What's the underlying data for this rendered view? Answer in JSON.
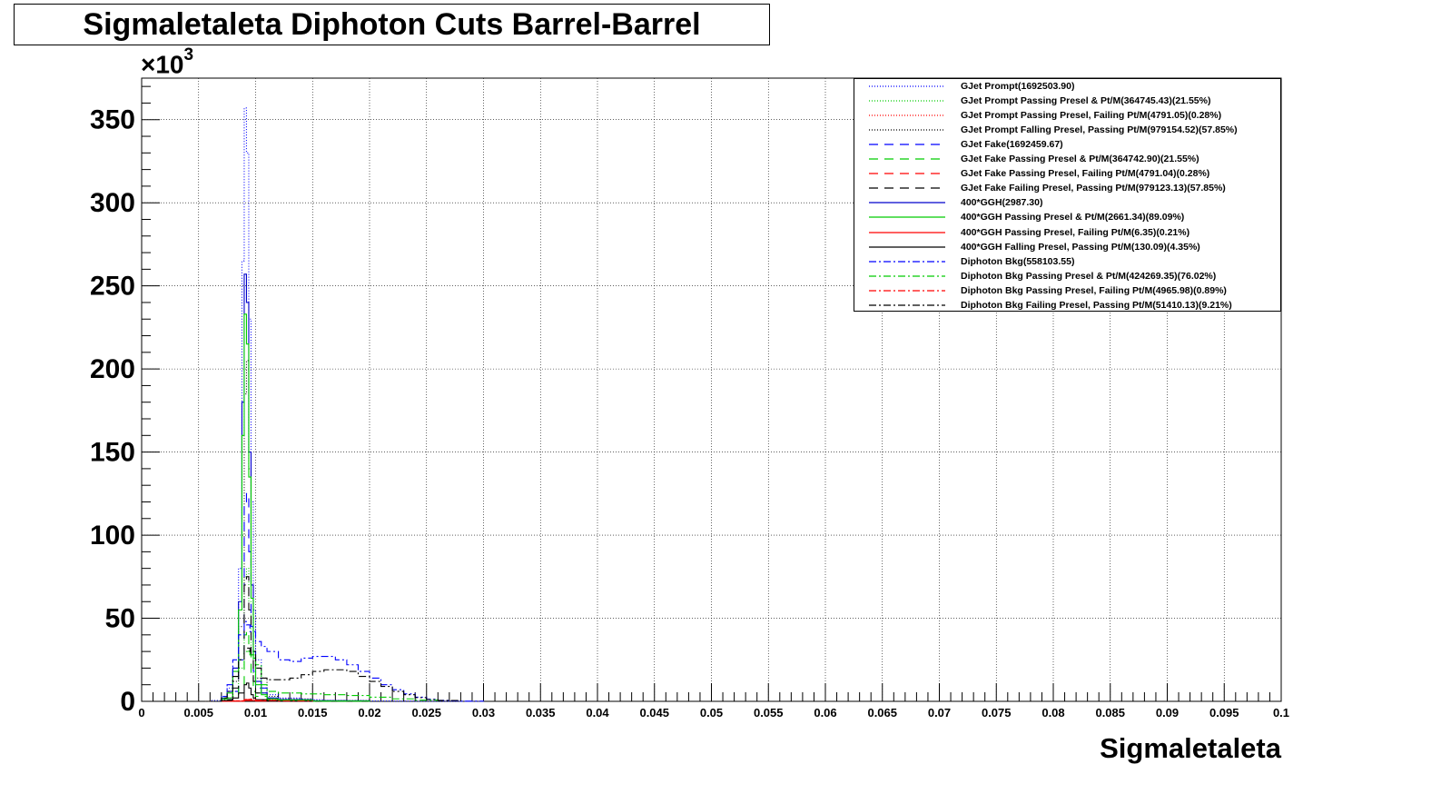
{
  "chart_data": {
    "type": "line",
    "title": "Sigmaletaleta Diphoton Cuts Barrel-Barrel",
    "xlabel": "Sigmaletaleta",
    "ylabel": "",
    "y_exponent_base": "×10",
    "y_exponent_power": "3",
    "xlim": [
      0,
      0.1
    ],
    "ylim": [
      0,
      375
    ],
    "grid": true,
    "legend_position": "top-right",
    "x_ticks": [
      "0",
      "0.005",
      "0.01",
      "0.015",
      "0.02",
      "0.025",
      "0.03",
      "0.035",
      "0.04",
      "0.045",
      "0.05",
      "0.055",
      "0.06",
      "0.065",
      "0.07",
      "0.075",
      "0.08",
      "0.085",
      "0.09",
      "0.095",
      "0.1"
    ],
    "y_ticks": [
      "0",
      "50",
      "100",
      "150",
      "200",
      "250",
      "300",
      "350"
    ],
    "series": [
      {
        "name": "GJet Prompt(1692503.90)",
        "color": "#0000ff",
        "dash": "1,2",
        "x": [
          0.005,
          0.006,
          0.007,
          0.0075,
          0.008,
          0.0085,
          0.0088,
          0.009,
          0.0092,
          0.0094,
          0.0096,
          0.0098,
          0.01,
          0.0105,
          0.011,
          0.012,
          0.014,
          0.016,
          0.018,
          0.02,
          0.022,
          0.024,
          0.026,
          0.028,
          0.03
        ],
        "y": [
          0,
          0.5,
          3,
          8,
          20,
          80,
          265,
          357,
          330,
          230,
          120,
          55,
          25,
          8,
          4,
          2,
          1,
          0.5,
          0.3,
          0.2,
          0.1,
          0,
          0,
          0,
          0
        ]
      },
      {
        "name": "GJet Prompt Passing Presel & Pt/M(364745.43)(21.55%)",
        "color": "#00cc00",
        "dash": "1,2",
        "x": [
          0.005,
          0.007,
          0.008,
          0.0085,
          0.009,
          0.0092,
          0.0094,
          0.0096,
          0.0098,
          0.01,
          0.011,
          0.012,
          0.015,
          0.02
        ],
        "y": [
          0,
          1,
          6,
          20,
          75,
          80,
          60,
          30,
          12,
          5,
          1,
          0.5,
          0.2,
          0
        ]
      },
      {
        "name": "GJet Prompt Passing Presel, Failing Pt/M(4791.05)(0.28%)",
        "color": "#ff0000",
        "dash": "1,2",
        "x": [
          0.005,
          0.008,
          0.009,
          0.0095,
          0.01,
          0.012,
          0.015
        ],
        "y": [
          0,
          0.3,
          1.2,
          1.5,
          0.8,
          0.1,
          0
        ]
      },
      {
        "name": "GJet Prompt Falling Presel, Passing Pt/M(979154.52)(57.85%)",
        "color": "#000000",
        "dash": "1,2",
        "x": [
          0.005,
          0.007,
          0.008,
          0.0085,
          0.009,
          0.0092,
          0.0094,
          0.0096,
          0.0098,
          0.01,
          0.011,
          0.012,
          0.015,
          0.02
        ],
        "y": [
          0,
          2,
          12,
          45,
          185,
          205,
          140,
          70,
          30,
          14,
          3,
          1.5,
          0.5,
          0
        ]
      },
      {
        "name": "GJet Fake(1692459.67)",
        "color": "#0000ff",
        "dash": "10,7",
        "x": [
          0.005,
          0.007,
          0.008,
          0.0085,
          0.009,
          0.0092,
          0.0094,
          0.0096,
          0.0098,
          0.01,
          0.011,
          0.012,
          0.015,
          0.02
        ],
        "y": [
          0,
          1,
          6,
          25,
          120,
          125,
          90,
          45,
          18,
          8,
          2,
          1,
          0.3,
          0
        ]
      },
      {
        "name": "GJet Fake Passing Presel & Pt/M(364742.90)(21.55%)",
        "color": "#00cc00",
        "dash": "10,7",
        "x": [
          0.005,
          0.007,
          0.008,
          0.0085,
          0.009,
          0.0092,
          0.0094,
          0.0096,
          0.0098,
          0.01,
          0.011,
          0.012,
          0.015,
          0.02
        ],
        "y": [
          0,
          0.5,
          3,
          10,
          40,
          42,
          30,
          15,
          6,
          3,
          1,
          0.5,
          0.1,
          0
        ]
      },
      {
        "name": "GJet Fake Passing Presel, Failing Pt/M(4791.04)(0.28%)",
        "color": "#ff0000",
        "dash": "10,7",
        "x": [
          0.005,
          0.008,
          0.009,
          0.0095,
          0.01,
          0.012,
          0.015
        ],
        "y": [
          0,
          0.2,
          1,
          1.2,
          0.6,
          0.1,
          0
        ]
      },
      {
        "name": "GJet Fake Failing Presel, Passing Pt/M(979123.13)(57.85%)",
        "color": "#000000",
        "dash": "10,7",
        "x": [
          0.005,
          0.007,
          0.008,
          0.0085,
          0.009,
          0.0092,
          0.0094,
          0.0096,
          0.0098,
          0.01,
          0.011,
          0.012,
          0.015,
          0.02
        ],
        "y": [
          0,
          1,
          8,
          28,
          70,
          75,
          55,
          28,
          12,
          5,
          1.5,
          0.8,
          0.2,
          0
        ]
      },
      {
        "name": "400*GGH(2987.30)",
        "color": "#0000cc",
        "dash": "",
        "x": [
          0.005,
          0.007,
          0.0075,
          0.008,
          0.0085,
          0.0088,
          0.009,
          0.0092,
          0.0094,
          0.0096,
          0.0098,
          0.01,
          0.0105,
          0.011,
          0.012,
          0.015,
          0.02
        ],
        "y": [
          0,
          2,
          6,
          20,
          60,
          180,
          257,
          240,
          150,
          70,
          30,
          12,
          5,
          2,
          1,
          0.3,
          0
        ]
      },
      {
        "name": "400*GGH Passing Presel & Pt/M(2661.34)(89.09%)",
        "color": "#00cc00",
        "dash": "",
        "x": [
          0.005,
          0.007,
          0.0075,
          0.008,
          0.0085,
          0.0088,
          0.009,
          0.0092,
          0.0094,
          0.0096,
          0.0098,
          0.01,
          0.0105,
          0.011,
          0.012,
          0.015,
          0.02
        ],
        "y": [
          0,
          1.5,
          5,
          18,
          55,
          160,
          233,
          215,
          135,
          62,
          26,
          10,
          4,
          1.5,
          0.8,
          0.2,
          0
        ]
      },
      {
        "name": "400*GGH Passing Presel, Failing Pt/M(6.35)(0.21%)",
        "color": "#ff0000",
        "dash": "",
        "x": [
          0.005,
          0.008,
          0.009,
          0.0095,
          0.01,
          0.012
        ],
        "y": [
          0,
          0.1,
          0.5,
          0.5,
          0.2,
          0
        ]
      },
      {
        "name": "400*GGH Falling Presel, Passing Pt/M(130.09)(4.35%)",
        "color": "#000000",
        "dash": "",
        "x": [
          0.005,
          0.007,
          0.008,
          0.0085,
          0.009,
          0.0092,
          0.0094,
          0.0096,
          0.0098,
          0.01,
          0.011,
          0.012,
          0.015
        ],
        "y": [
          0,
          0.5,
          2,
          5,
          10,
          11,
          8,
          4,
          2,
          1,
          0.3,
          0.1,
          0
        ]
      },
      {
        "name": "Diphoton Bkg(558103.55)",
        "color": "#0000ff",
        "dash": "8,3,2,3",
        "x": [
          0.005,
          0.007,
          0.0075,
          0.008,
          0.0085,
          0.009,
          0.0092,
          0.0095,
          0.01,
          0.0105,
          0.011,
          0.012,
          0.013,
          0.014,
          0.015,
          0.016,
          0.017,
          0.018,
          0.019,
          0.02,
          0.021,
          0.022,
          0.023,
          0.024,
          0.025,
          0.026,
          0.027,
          0.028,
          0.03
        ],
        "y": [
          0,
          3,
          10,
          25,
          40,
          48,
          46,
          42,
          36,
          33,
          30,
          25,
          24,
          26,
          27,
          27,
          25,
          22,
          18,
          14,
          10,
          7,
          4.5,
          2.5,
          1.3,
          0.6,
          0.3,
          0.1,
          0
        ]
      },
      {
        "name": "Diphoton Bkg Passing Presel & Pt/M(424269.35)(76.02%)",
        "color": "#00cc00",
        "dash": "8,3,2,3",
        "x": [
          0.005,
          0.007,
          0.008,
          0.0085,
          0.009,
          0.0095,
          0.01,
          0.0105,
          0.011,
          0.012,
          0.014,
          0.016,
          0.018,
          0.02,
          0.022,
          0.024,
          0.026
        ],
        "y": [
          0,
          2,
          15,
          25,
          30,
          28,
          22,
          10,
          6,
          5,
          4.5,
          4,
          3.5,
          2.5,
          1.5,
          0.7,
          0
        ]
      },
      {
        "name": "Diphoton Bkg Passing Presel, Failing Pt/M(4965.98)(0.89%)",
        "color": "#ff0000",
        "dash": "8,3,2,3",
        "x": [
          0.005,
          0.008,
          0.009,
          0.0095,
          0.01,
          0.012,
          0.015
        ],
        "y": [
          0,
          0.3,
          1,
          1,
          0.6,
          0.2,
          0
        ]
      },
      {
        "name": "Diphoton Bkg Failing Presel, Passing Pt/M(51410.13)(9.21%)",
        "color": "#000000",
        "dash": "8,3,2,3",
        "x": [
          0.005,
          0.007,
          0.0075,
          0.008,
          0.0085,
          0.009,
          0.0095,
          0.01,
          0.0105,
          0.011,
          0.012,
          0.013,
          0.014,
          0.015,
          0.016,
          0.017,
          0.018,
          0.019,
          0.02,
          0.021,
          0.022,
          0.023,
          0.024,
          0.025,
          0.026,
          0.028
        ],
        "y": [
          0,
          2,
          6,
          15,
          25,
          32,
          30,
          20,
          14,
          13,
          13,
          14,
          16,
          18,
          19,
          19,
          18,
          15,
          12,
          9,
          6,
          4,
          2.2,
          1.1,
          0.5,
          0
        ]
      }
    ]
  }
}
